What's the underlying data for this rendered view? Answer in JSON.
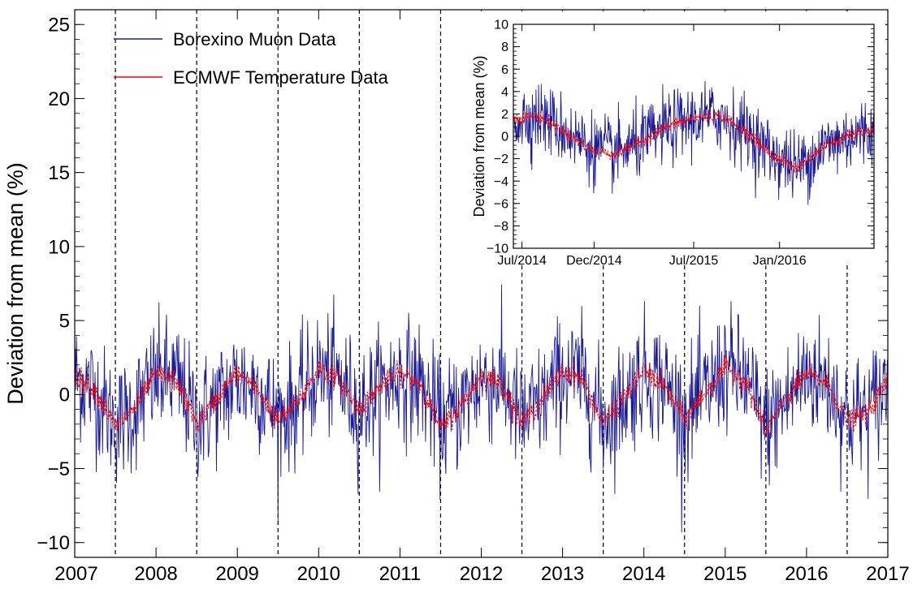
{
  "chart_data": [
    {
      "type": "line",
      "title": "",
      "xlabel": "",
      "ylabel": "Deviation from mean (%)",
      "xlim": [
        2007.0,
        2017.0
      ],
      "ylim": [
        -11,
        26
      ],
      "y_ticks": [
        -10,
        -5,
        0,
        5,
        10,
        15,
        20,
        25
      ],
      "x_tick_labels": [
        "2007",
        "2008",
        "2009",
        "2010",
        "2011",
        "2012",
        "2013",
        "2014",
        "2015",
        "2016",
        "2017"
      ],
      "x_tick_positions": [
        2007,
        2008,
        2009,
        2010,
        2011,
        2012,
        2013,
        2014,
        2015,
        2016,
        2017
      ],
      "dashed_lines_x": [
        2007.5,
        2008.5,
        2009.5,
        2010.5,
        2011.5,
        2012.5,
        2013.5,
        2014.5,
        2015.5,
        2016.5
      ],
      "legend_position": "top-left",
      "legend": [
        {
          "name": "Borexino Muon Data",
          "color": "#1a1a99"
        },
        {
          "name": "ECMWF Temperature Data",
          "color": "#ff0000"
        }
      ],
      "series": [
        {
          "name": "Borexino Muon Data",
          "color": "#1a1a99",
          "noise_amplitude": 4.5,
          "x": [
            2007.0,
            2007.25,
            2007.5,
            2007.75,
            2008.0,
            2008.25,
            2008.5,
            2008.75,
            2009.0,
            2009.25,
            2009.5,
            2009.75,
            2010.0,
            2010.25,
            2010.5,
            2010.75,
            2011.0,
            2011.25,
            2011.5,
            2011.75,
            2012.0,
            2012.25,
            2012.5,
            2012.75,
            2013.0,
            2013.25,
            2013.5,
            2013.75,
            2014.0,
            2014.25,
            2014.5,
            2014.75,
            2015.0,
            2015.25,
            2015.5,
            2015.75,
            2016.0,
            2016.25,
            2016.5,
            2016.75,
            2017.0
          ],
          "y": [
            1.2,
            0.2,
            -2.0,
            -1.0,
            1.2,
            1.0,
            -1.8,
            -0.5,
            1.0,
            0.5,
            -1.5,
            -0.5,
            1.5,
            1.0,
            -1.0,
            0.3,
            1.3,
            0.8,
            -2.0,
            -0.8,
            1.0,
            0.8,
            -1.8,
            -0.5,
            1.5,
            1.0,
            -1.8,
            -0.3,
            1.5,
            0.8,
            -1.5,
            0.0,
            1.8,
            1.0,
            -2.2,
            -0.5,
            1.5,
            0.8,
            -1.5,
            -1.2,
            0.8
          ]
        },
        {
          "name": "ECMWF Temperature Data",
          "color": "#ff0000",
          "noise_amplitude": 0.8,
          "x": [
            2007.0,
            2007.25,
            2007.5,
            2007.75,
            2008.0,
            2008.25,
            2008.5,
            2008.75,
            2009.0,
            2009.25,
            2009.5,
            2009.75,
            2010.0,
            2010.25,
            2010.5,
            2010.75,
            2011.0,
            2011.25,
            2011.5,
            2011.75,
            2012.0,
            2012.25,
            2012.5,
            2012.75,
            2013.0,
            2013.25,
            2013.5,
            2013.75,
            2014.0,
            2014.25,
            2014.5,
            2014.75,
            2015.0,
            2015.25,
            2015.5,
            2015.75,
            2016.0,
            2016.25,
            2016.5,
            2016.75,
            2017.0
          ],
          "y": [
            1.3,
            0.3,
            -2.2,
            -0.8,
            1.4,
            1.0,
            -2.0,
            -0.3,
            1.5,
            0.3,
            -1.8,
            -0.5,
            1.8,
            1.0,
            -1.0,
            0.5,
            1.5,
            0.8,
            -2.3,
            -0.8,
            1.3,
            0.8,
            -2.0,
            -0.3,
            1.6,
            1.0,
            -2.0,
            -0.2,
            1.6,
            0.6,
            -1.7,
            0.1,
            1.8,
            1.0,
            -2.5,
            -0.3,
            1.4,
            0.8,
            -1.8,
            -1.3,
            1.0
          ]
        }
      ]
    },
    {
      "type": "line",
      "title": "",
      "xlabel": "",
      "ylabel": "Deviation from mean (%)",
      "xlim": [
        2014.45,
        2016.55
      ],
      "ylim": [
        -10,
        10
      ],
      "y_ticks": [
        -10,
        -8,
        -6,
        -4,
        -2,
        0,
        2,
        4,
        6,
        8,
        10
      ],
      "x_tick_labels": [
        "Jul/2014",
        "Dec/2014",
        "Jul/2015",
        "Jan/2016"
      ],
      "x_tick_positions": [
        2014.5,
        2014.92,
        2015.5,
        2016.0
      ],
      "series": [
        {
          "name": "Borexino Muon Data",
          "color": "#1a1a99",
          "noise_amplitude": 3.5,
          "x": [
            2014.45,
            2014.6,
            2014.75,
            2014.9,
            2015.05,
            2015.2,
            2015.35,
            2015.5,
            2015.65,
            2015.8,
            2015.95,
            2016.1,
            2016.25,
            2016.4,
            2016.55
          ],
          "y": [
            1.5,
            1.8,
            0.5,
            -1.0,
            -1.5,
            -0.5,
            0.8,
            1.5,
            1.8,
            0.5,
            -1.5,
            -2.8,
            -1.0,
            0.0,
            0.5
          ]
        },
        {
          "name": "ECMWF Temperature Data",
          "color": "#ff0000",
          "noise_amplitude": 0.6,
          "x": [
            2014.45,
            2014.6,
            2014.75,
            2014.9,
            2015.05,
            2015.2,
            2015.35,
            2015.5,
            2015.65,
            2015.8,
            2015.95,
            2016.1,
            2016.25,
            2016.4,
            2016.55
          ],
          "y": [
            1.6,
            1.8,
            0.4,
            -1.2,
            -1.6,
            -0.4,
            0.9,
            1.6,
            1.9,
            0.5,
            -1.6,
            -2.9,
            -1.0,
            0.0,
            0.6
          ]
        }
      ]
    }
  ]
}
